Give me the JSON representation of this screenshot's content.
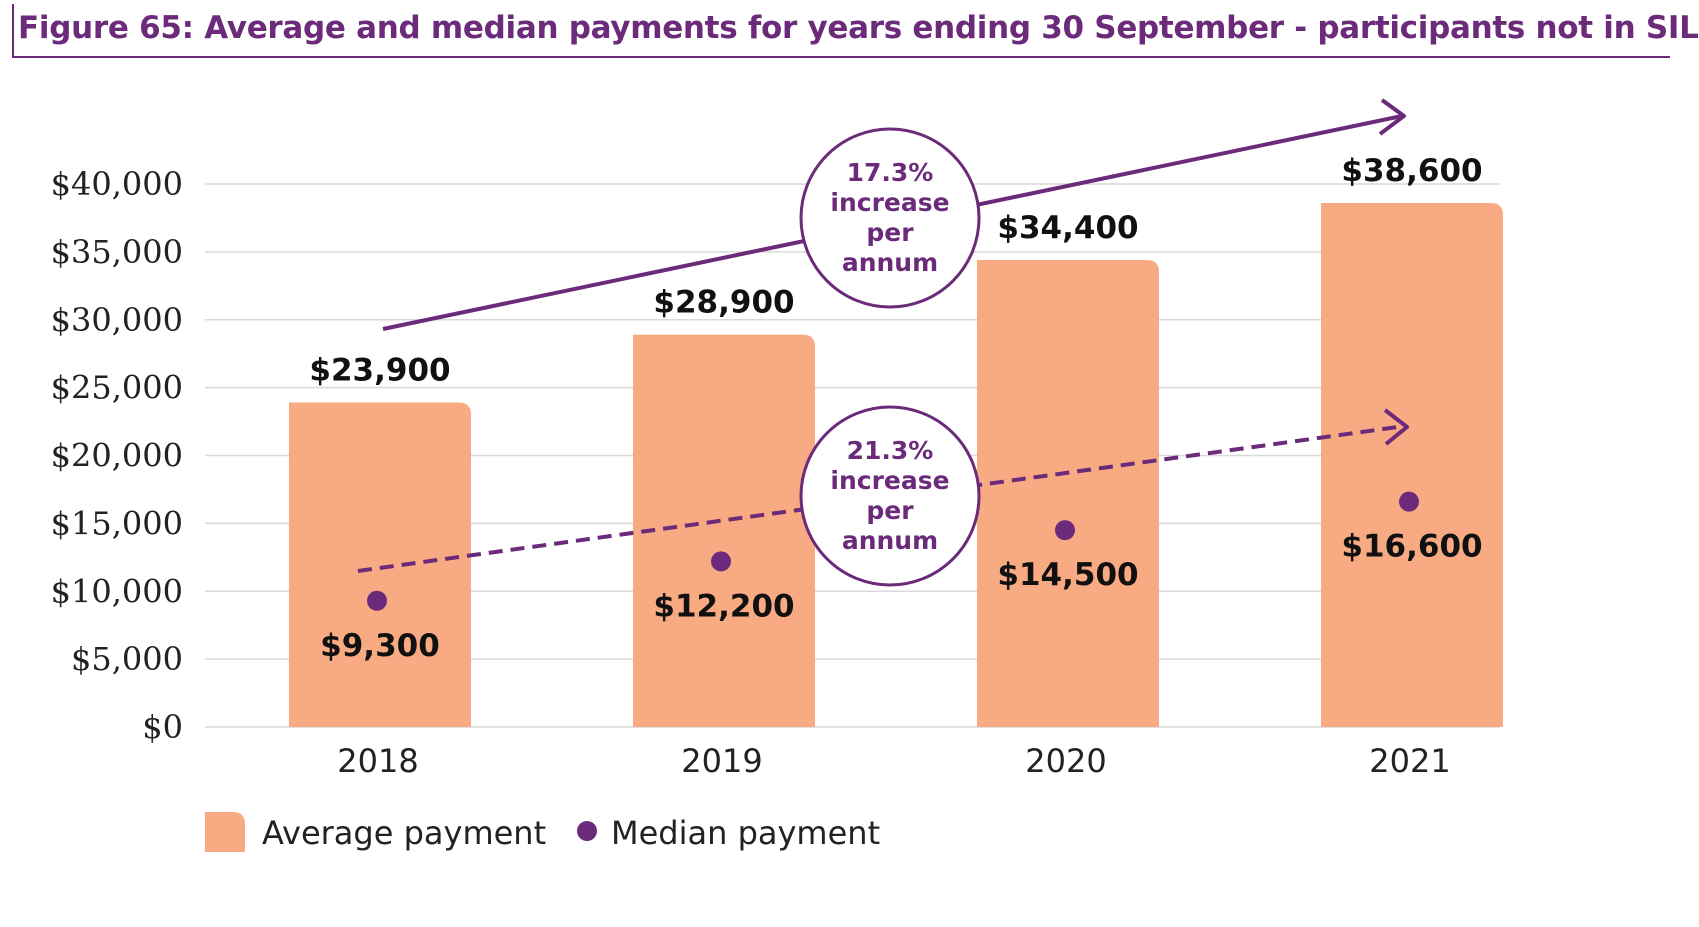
{
  "title": "Figure 65: Average and median payments for years ending 30 September - participants not in SIL",
  "colors": {
    "accent": "#6b2a7a",
    "bar": "#f8ab82",
    "gridline": "#d9d9d9"
  },
  "chart_data": {
    "type": "bar",
    "categories": [
      "2018",
      "2019",
      "2020",
      "2021"
    ],
    "ylim": [
      0,
      40000
    ],
    "yticks": [
      0,
      5000,
      10000,
      15000,
      20000,
      25000,
      30000,
      35000,
      40000
    ],
    "ytick_labels": [
      "$0",
      "$5,000",
      "$10,000",
      "$15,000",
      "$20,000",
      "$25,000",
      "$30,000",
      "$35,000",
      "$40,000"
    ],
    "grid": true,
    "legend_position": "bottom-left",
    "series": [
      {
        "name": "Average payment",
        "type": "bar",
        "values": [
          23900,
          28900,
          34400,
          38600
        ],
        "labels": [
          "$23,900",
          "$28,900",
          "$34,400",
          "$38,600"
        ]
      },
      {
        "name": "Median payment",
        "type": "scatter",
        "values": [
          9300,
          12200,
          14500,
          16600
        ],
        "labels": [
          "$9,300",
          "$12,200",
          "$14,500",
          "$16,600"
        ]
      }
    ],
    "annotations": [
      {
        "lines": [
          "17.3%",
          "increase",
          "per",
          "annum"
        ],
        "series": "Average payment",
        "style": "solid-arrow"
      },
      {
        "lines": [
          "21.3%",
          "increase",
          "per",
          "annum"
        ],
        "series": "Median payment",
        "style": "dashed-arrow"
      }
    ]
  }
}
